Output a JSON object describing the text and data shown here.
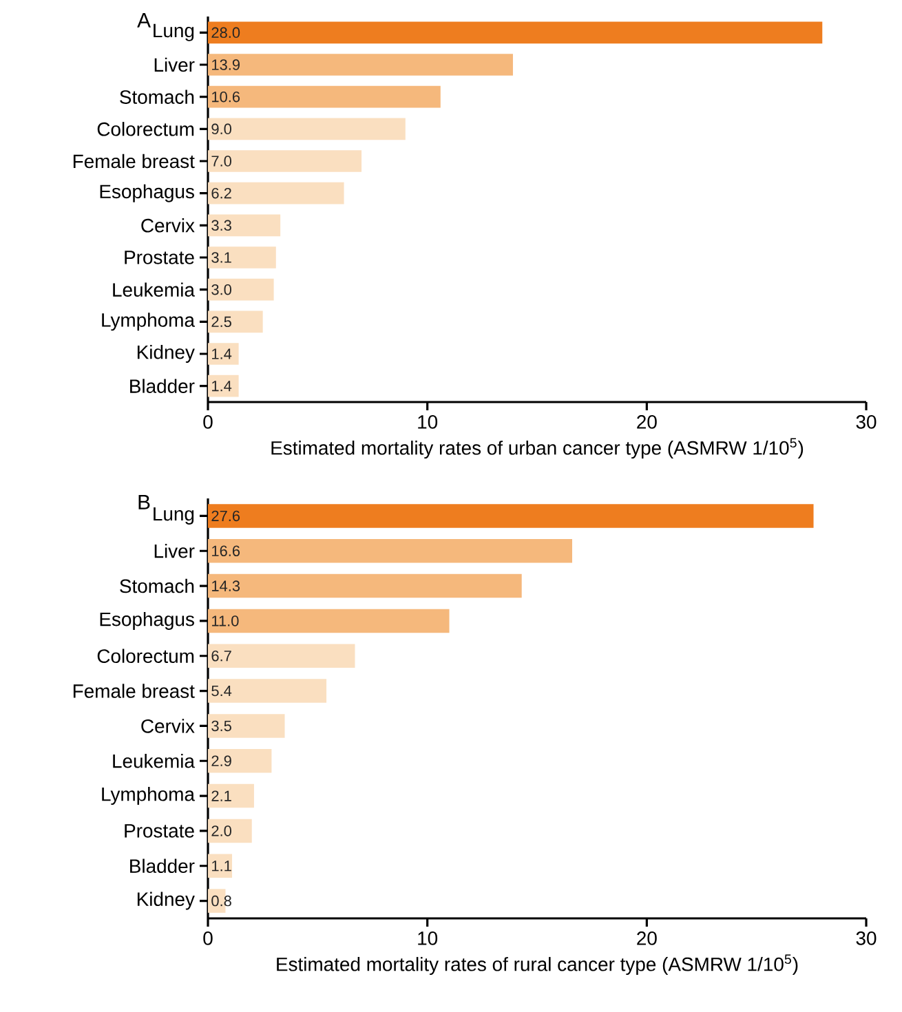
{
  "chart_data": [
    {
      "type": "bar",
      "orientation": "horizontal",
      "title": "A",
      "xlabel": "Estimated mortality rates of urban cancer type (ASMRW 1/10$^{5}$)",
      "categories": [
        "Lung",
        "Liver",
        "Stomach",
        "Colorectum",
        "Female breast",
        "Esophagus",
        "Cervix",
        "Prostate",
        "Leukemia",
        "Lymphoma",
        "Kidney",
        "Bladder"
      ],
      "values": [
        28.0,
        13.9,
        10.6,
        9.0,
        7.0,
        6.2,
        3.3,
        3.1,
        3.0,
        2.5,
        1.4,
        1.4
      ],
      "value_labels": [
        "28.0",
        "13.9",
        "10.6",
        "9.0",
        "7.0",
        "6.2",
        "3.3",
        "3.1",
        "3.0",
        "2.5",
        "1.4",
        "1.4"
      ],
      "colors": [
        "#ee7d1f",
        "#f5b87c",
        "#f5b87c",
        "#fadfc0",
        "#fadfc0",
        "#fadfc0",
        "#fadfc0",
        "#fadfc0",
        "#fadfc0",
        "#fadfc0",
        "#fadfc0",
        "#fadfc0"
      ],
      "xlim": [
        0,
        30
      ],
      "xticks": [
        0,
        10,
        20,
        30
      ]
    },
    {
      "type": "bar",
      "orientation": "horizontal",
      "title": "B",
      "xlabel": "Estimated mortality rates of rural cancer type (ASMRW 1/10$^{5}$)",
      "categories": [
        "Lung",
        "Liver",
        "Stomach",
        "Esophagus",
        "Colorectum",
        "Female breast",
        "Cervix",
        "Leukemia",
        "Lymphoma",
        "Prostate",
        "Bladder",
        "Kidney"
      ],
      "values": [
        27.6,
        16.6,
        14.3,
        11.0,
        6.7,
        5.4,
        3.5,
        2.9,
        2.1,
        2.0,
        1.1,
        0.8
      ],
      "value_labels": [
        "27.6",
        "16.6",
        "14.3",
        "11.0",
        "6.7",
        "5.4",
        "3.5",
        "2.9",
        "2.1",
        "2.0",
        "1.1",
        "0.8"
      ],
      "colors": [
        "#ee7d1f",
        "#f5b87c",
        "#f5b87c",
        "#f5b87c",
        "#fadfc0",
        "#fadfc0",
        "#fadfc0",
        "#fadfc0",
        "#fadfc0",
        "#fadfc0",
        "#fadfc0",
        "#fadfc0"
      ],
      "xlim": [
        0,
        30
      ],
      "xticks": [
        0,
        10,
        20,
        30
      ]
    }
  ]
}
